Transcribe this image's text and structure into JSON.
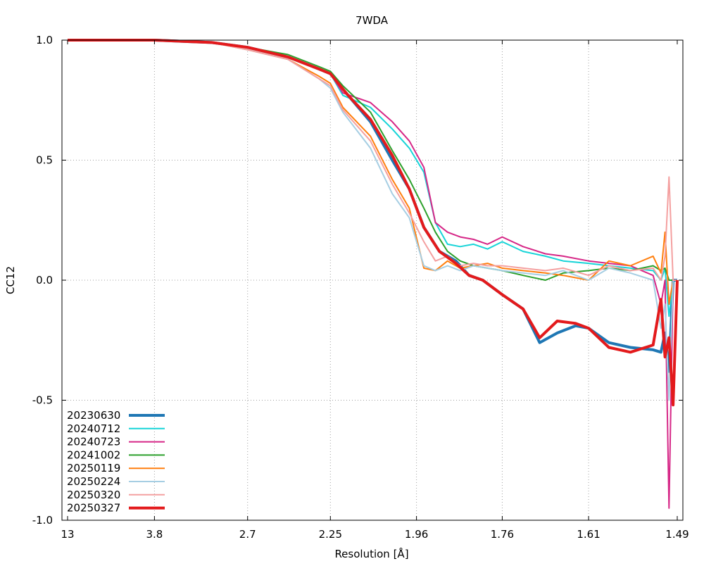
{
  "chart_data": {
    "type": "line",
    "title": "7WDA",
    "xlabel": "Resolution [Å]",
    "ylabel": "CC12",
    "xaxis_scale": "1/d^2",
    "x_tick_labels": [
      "13",
      "3.8",
      "2.7",
      "2.25",
      "1.96",
      "1.76",
      "1.61",
      "1.49"
    ],
    "y_ticks": [
      -1.0,
      -0.5,
      0.0,
      0.5,
      1.0
    ],
    "y_tick_labels": [
      "-1.0",
      "-0.5",
      "0.0",
      "0.5",
      "1.0"
    ],
    "ylim": [
      -1.0,
      1.0
    ],
    "grid": true,
    "legend_position": "bottom-left",
    "series": [
      {
        "name": "20230630",
        "color": "#1f77b4",
        "width": 4,
        "x": [
          13,
          3.8,
          3.0,
          2.7,
          2.45,
          2.3,
          2.25,
          2.18,
          2.1,
          2.03,
          1.98,
          1.94,
          1.9,
          1.86,
          1.83,
          1.8,
          1.76,
          1.72,
          1.69,
          1.66,
          1.63,
          1.61,
          1.58,
          1.55,
          1.52,
          1.51,
          1.505,
          1.5,
          1.495,
          1.49
        ],
        "y": [
          1.0,
          1.0,
          0.99,
          0.97,
          0.93,
          0.88,
          0.86,
          0.77,
          0.66,
          0.5,
          0.38,
          0.22,
          0.12,
          0.08,
          0.02,
          0.0,
          -0.06,
          -0.12,
          -0.26,
          -0.22,
          -0.19,
          -0.2,
          -0.26,
          -0.28,
          -0.29,
          -0.3,
          -0.22,
          -0.38,
          0.0,
          0.0
        ]
      },
      {
        "name": "20240712",
        "color": "#17d4d8",
        "width": 2,
        "x": [
          13,
          3.8,
          3.0,
          2.7,
          2.45,
          2.3,
          2.25,
          2.2,
          2.1,
          2.03,
          1.98,
          1.94,
          1.91,
          1.88,
          1.85,
          1.82,
          1.79,
          1.76,
          1.72,
          1.68,
          1.65,
          1.61,
          1.58,
          1.55,
          1.52,
          1.51,
          1.505,
          1.5,
          1.495,
          1.49
        ],
        "y": [
          1.0,
          1.0,
          0.99,
          0.97,
          0.93,
          0.88,
          0.86,
          0.77,
          0.72,
          0.63,
          0.55,
          0.45,
          0.24,
          0.15,
          0.14,
          0.15,
          0.13,
          0.16,
          0.12,
          0.1,
          0.08,
          0.07,
          0.06,
          0.05,
          0.04,
          0.0,
          0.05,
          -0.15,
          0.0,
          0.0
        ]
      },
      {
        "name": "20240723",
        "color": "#d62787",
        "width": 2,
        "x": [
          13,
          3.8,
          3.0,
          2.7,
          2.45,
          2.3,
          2.25,
          2.2,
          2.1,
          2.03,
          1.98,
          1.94,
          1.91,
          1.88,
          1.85,
          1.82,
          1.79,
          1.76,
          1.72,
          1.68,
          1.65,
          1.61,
          1.58,
          1.55,
          1.52,
          1.51,
          1.505,
          1.5,
          1.495,
          1.49
        ],
        "y": [
          1.0,
          1.0,
          0.99,
          0.97,
          0.93,
          0.88,
          0.86,
          0.78,
          0.74,
          0.66,
          0.58,
          0.47,
          0.24,
          0.2,
          0.18,
          0.17,
          0.15,
          0.18,
          0.14,
          0.11,
          0.1,
          0.08,
          0.07,
          0.06,
          0.02,
          -0.1,
          0.0,
          -0.95,
          0.0,
          0.0
        ]
      },
      {
        "name": "20241002",
        "color": "#2ca02c",
        "width": 2,
        "x": [
          13,
          3.8,
          3.0,
          2.7,
          2.45,
          2.3,
          2.25,
          2.2,
          2.1,
          2.03,
          1.98,
          1.94,
          1.91,
          1.88,
          1.85,
          1.82,
          1.79,
          1.76,
          1.72,
          1.68,
          1.65,
          1.61,
          1.58,
          1.55,
          1.52,
          1.51,
          1.505,
          1.5,
          1.495,
          1.49
        ],
        "y": [
          1.0,
          1.0,
          0.99,
          0.97,
          0.94,
          0.89,
          0.87,
          0.81,
          0.7,
          0.54,
          0.42,
          0.3,
          0.2,
          0.12,
          0.08,
          0.06,
          0.05,
          0.04,
          0.02,
          0.0,
          0.03,
          0.04,
          0.05,
          0.04,
          0.06,
          0.04,
          0.05,
          0.0,
          0.0,
          0.0
        ]
      },
      {
        "name": "20250119",
        "color": "#ff7f0e",
        "width": 2,
        "x": [
          13,
          3.8,
          3.0,
          2.7,
          2.45,
          2.3,
          2.25,
          2.2,
          2.1,
          2.03,
          1.98,
          1.94,
          1.91,
          1.88,
          1.85,
          1.82,
          1.79,
          1.76,
          1.72,
          1.68,
          1.65,
          1.61,
          1.58,
          1.55,
          1.52,
          1.51,
          1.505,
          1.5,
          1.495,
          1.49
        ],
        "y": [
          1.0,
          1.0,
          0.99,
          0.96,
          0.92,
          0.85,
          0.82,
          0.72,
          0.6,
          0.42,
          0.3,
          0.05,
          0.04,
          0.08,
          0.05,
          0.06,
          0.07,
          0.05,
          0.04,
          0.03,
          0.02,
          0.0,
          0.08,
          0.06,
          0.1,
          0.03,
          0.2,
          -0.1,
          0.0,
          0.0
        ]
      },
      {
        "name": "20250224",
        "color": "#a6cee3",
        "width": 2,
        "x": [
          13,
          3.8,
          3.0,
          2.7,
          2.45,
          2.3,
          2.25,
          2.2,
          2.1,
          2.03,
          1.98,
          1.94,
          1.91,
          1.88,
          1.85,
          1.82,
          1.79,
          1.76,
          1.72,
          1.68,
          1.65,
          1.61,
          1.58,
          1.55,
          1.52,
          1.51,
          1.505,
          1.5,
          1.495,
          1.49
        ],
        "y": [
          1.0,
          1.0,
          0.99,
          0.96,
          0.92,
          0.84,
          0.8,
          0.7,
          0.55,
          0.36,
          0.26,
          0.06,
          0.04,
          0.06,
          0.04,
          0.06,
          0.05,
          0.04,
          0.03,
          0.02,
          0.04,
          0.0,
          0.05,
          0.03,
          0.0,
          -0.2,
          -0.1,
          -0.5,
          0.0,
          0.0
        ]
      },
      {
        "name": "20250320",
        "color": "#f4a0a0",
        "width": 2,
        "x": [
          13,
          3.8,
          3.0,
          2.7,
          2.45,
          2.3,
          2.25,
          2.2,
          2.1,
          2.03,
          1.98,
          1.94,
          1.91,
          1.88,
          1.85,
          1.82,
          1.79,
          1.76,
          1.72,
          1.68,
          1.65,
          1.61,
          1.58,
          1.55,
          1.52,
          1.51,
          1.505,
          1.5,
          1.495,
          1.49
        ],
        "y": [
          1.0,
          1.0,
          0.99,
          0.96,
          0.92,
          0.84,
          0.81,
          0.71,
          0.58,
          0.4,
          0.28,
          0.16,
          0.08,
          0.1,
          0.06,
          0.07,
          0.06,
          0.06,
          0.05,
          0.04,
          0.05,
          0.02,
          0.06,
          0.04,
          0.05,
          0.0,
          0.1,
          0.43,
          0.0,
          0.0
        ]
      },
      {
        "name": "20250327",
        "color": "#e31a1c",
        "width": 4,
        "x": [
          13,
          3.8,
          3.0,
          2.7,
          2.45,
          2.3,
          2.25,
          2.18,
          2.1,
          2.03,
          1.98,
          1.94,
          1.9,
          1.86,
          1.83,
          1.8,
          1.76,
          1.72,
          1.69,
          1.66,
          1.63,
          1.61,
          1.58,
          1.55,
          1.52,
          1.51,
          1.505,
          1.5,
          1.495,
          1.49
        ],
        "y": [
          1.0,
          1.0,
          0.99,
          0.97,
          0.93,
          0.88,
          0.86,
          0.77,
          0.67,
          0.52,
          0.38,
          0.22,
          0.12,
          0.07,
          0.02,
          0.0,
          -0.06,
          -0.12,
          -0.24,
          -0.17,
          -0.18,
          -0.2,
          -0.28,
          -0.3,
          -0.27,
          -0.08,
          -0.32,
          -0.24,
          -0.52,
          0.0
        ]
      }
    ]
  }
}
